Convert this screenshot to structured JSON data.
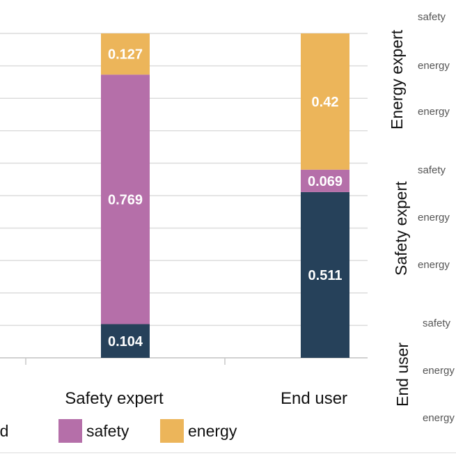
{
  "chart_data": {
    "type": "bar",
    "stacked": true,
    "normalized": true,
    "categories": [
      "Safety expert",
      "End user"
    ],
    "series": [
      {
        "name": "speed",
        "color": "#26415a",
        "values": [
          0.104,
          0.511
        ]
      },
      {
        "name": "safety",
        "color": "#b56fa9",
        "values": [
          0.769,
          0.069
        ]
      },
      {
        "name": "energy",
        "color": "#ecb55a",
        "values": [
          0.127,
          0.42
        ]
      }
    ],
    "data_labels": [
      [
        "0.104",
        "0.769",
        "0.127"
      ],
      [
        "0.511",
        "0.069",
        "0.42"
      ]
    ],
    "ylim": [
      0,
      1
    ],
    "grid": true,
    "legend_position": "bottom"
  },
  "legend": {
    "items": [
      {
        "label": "eed",
        "color": "#26415a"
      },
      {
        "label": "safety",
        "color": "#b56fa9"
      },
      {
        "label": "energy",
        "color": "#ecb55a"
      }
    ]
  },
  "side_panel": {
    "groups": [
      {
        "title": "Energy expert",
        "rows": [
          "safety",
          "energy",
          "energy"
        ]
      },
      {
        "title": "Safety expert",
        "rows": [
          "safety",
          "energy",
          "energy"
        ]
      },
      {
        "title": "End user",
        "rows": [
          "safety",
          "energy",
          "energy"
        ]
      }
    ]
  }
}
